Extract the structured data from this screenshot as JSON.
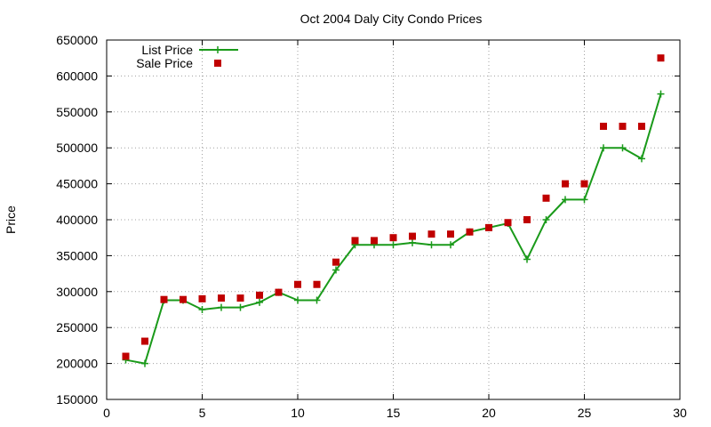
{
  "chart_data": {
    "type": "line",
    "title": "Oct 2004 Daly City Condo Prices",
    "xlabel": "",
    "ylabel": "Price",
    "xlim": [
      0,
      30
    ],
    "ylim": [
      150000,
      650000
    ],
    "xticks": [
      0,
      5,
      10,
      15,
      20,
      25,
      30
    ],
    "yticks": [
      150000,
      200000,
      250000,
      300000,
      350000,
      400000,
      450000,
      500000,
      550000,
      600000,
      650000
    ],
    "grid": true,
    "legend_position": "top-left",
    "series": [
      {
        "name": "List Price",
        "style": "line-plus",
        "color": "#1a9a1a",
        "x": [
          1,
          2,
          3,
          4,
          5,
          6,
          7,
          8,
          9,
          10,
          11,
          12,
          13,
          14,
          15,
          16,
          17,
          18,
          19,
          20,
          21,
          22,
          23,
          24,
          25,
          26,
          27,
          28,
          29
        ],
        "y": [
          205000,
          200000,
          288000,
          288000,
          275000,
          278000,
          278000,
          285000,
          299000,
          288000,
          288000,
          330000,
          365000,
          365000,
          365000,
          368000,
          365000,
          365000,
          383000,
          389000,
          395000,
          345000,
          400000,
          428000,
          428000,
          500000,
          500000,
          485000,
          575000
        ]
      },
      {
        "name": "Sale Price",
        "style": "square-marker",
        "color": "#c00000",
        "x": [
          1,
          2,
          3,
          4,
          5,
          6,
          7,
          8,
          9,
          10,
          11,
          12,
          13,
          14,
          15,
          16,
          17,
          18,
          19,
          20,
          21,
          22,
          23,
          24,
          25,
          26,
          27,
          28,
          29
        ],
        "y": [
          210000,
          231000,
          289000,
          289000,
          290000,
          291000,
          291000,
          295000,
          299000,
          310000,
          310000,
          341000,
          371000,
          371000,
          375000,
          377000,
          380000,
          380000,
          383000,
          389000,
          396000,
          400000,
          430000,
          450000,
          450000,
          530000,
          530000,
          530000,
          625000
        ]
      }
    ]
  }
}
